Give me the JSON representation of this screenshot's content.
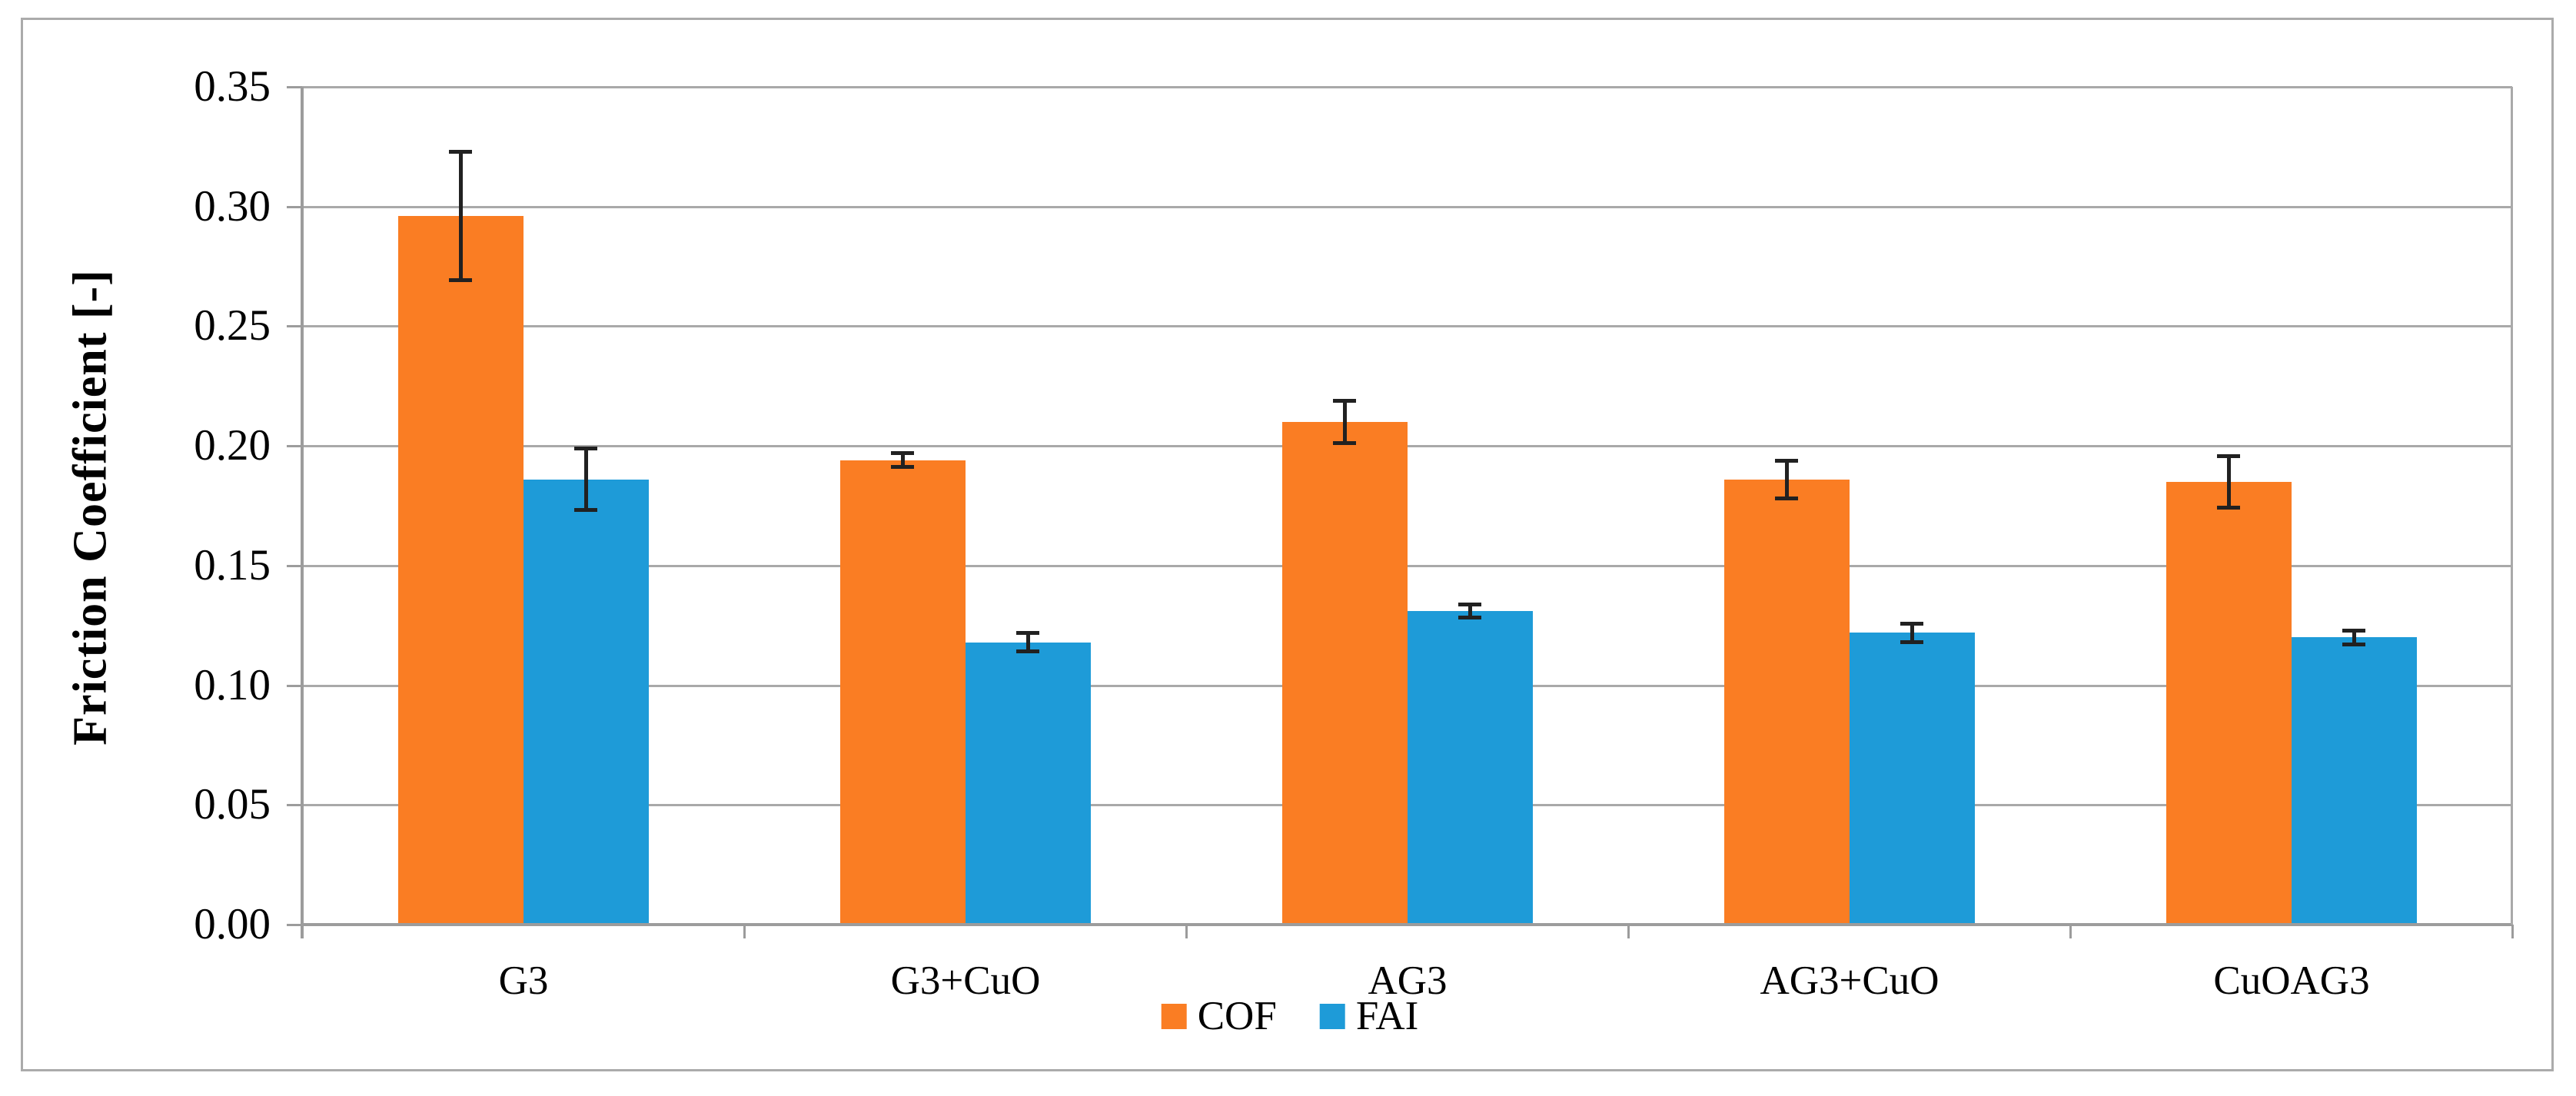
{
  "figure": {
    "background": "#FFFFFF",
    "border_color": "#ABABAB"
  },
  "chart_data": {
    "type": "bar",
    "title": "",
    "xlabel": "",
    "ylabel": "Friction Coefficient [-]",
    "ylim": [
      0,
      0.35
    ],
    "ytick_step": 0.05,
    "ytick_labels": [
      "0.00",
      "0.05",
      "0.10",
      "0.15",
      "0.20",
      "0.25",
      "0.30",
      "0.35"
    ],
    "categories": [
      "G3",
      "G3+CuO",
      "AG3",
      "AG3+CuO",
      "CuOAG3"
    ],
    "series": [
      {
        "name": "COF",
        "color": "#FA7D23",
        "values": [
          0.296,
          0.194,
          0.21,
          0.186,
          0.185
        ],
        "errors": [
          0.027,
          0.003,
          0.009,
          0.008,
          0.011
        ]
      },
      {
        "name": "FAI",
        "color": "#1E9BD8",
        "values": [
          0.186,
          0.118,
          0.131,
          0.122,
          0.12
        ],
        "errors": [
          0.013,
          0.004,
          0.003,
          0.004,
          0.003
        ]
      }
    ],
    "grid": true,
    "legend_position": "bottom-center",
    "gridline_color": "#A9A9A9",
    "axis_color": "#9C9C9C",
    "error_bar_color": "#212121",
    "text_color": "#000000"
  }
}
